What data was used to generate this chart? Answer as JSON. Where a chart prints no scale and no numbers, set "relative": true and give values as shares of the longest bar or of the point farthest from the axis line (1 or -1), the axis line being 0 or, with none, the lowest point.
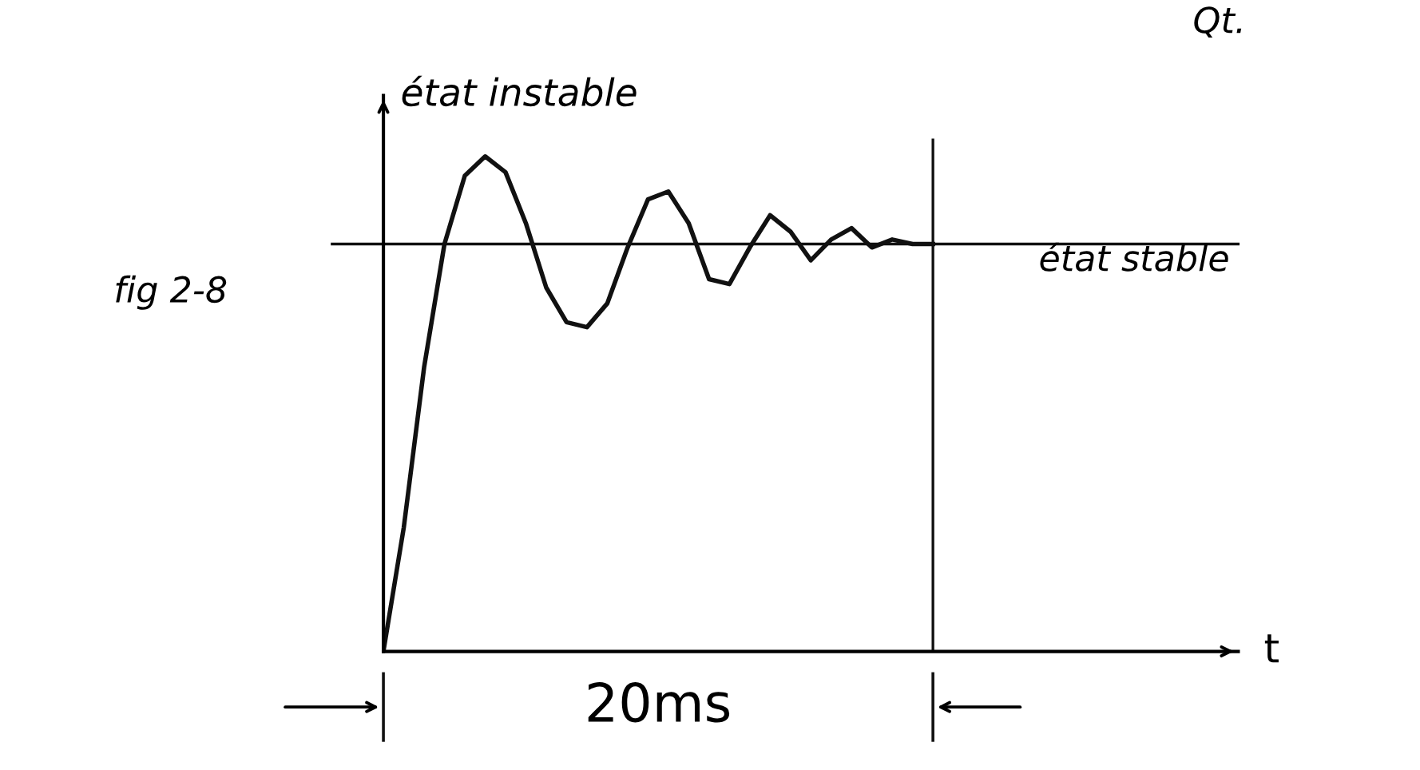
{
  "chart_data": {
    "type": "line",
    "relative": true,
    "xlabel": "t",
    "ylabel": "état instable",
    "legend": false,
    "marker": "none",
    "line_style": "solid",
    "categories": [
      null,
      null,
      null,
      null,
      null,
      null,
      null,
      null,
      null,
      null,
      null,
      null,
      null,
      null,
      null,
      null,
      null,
      null,
      null,
      null,
      null,
      null,
      null,
      null,
      null,
      null,
      null,
      null,
      null,
      null,
      null,
      null,
      null,
      null,
      null,
      null,
      null,
      null,
      null,
      null,
      null,
      null,
      null
    ],
    "series": [
      {
        "color": "#111111",
        "values": [
          0,
          0.25,
          0.574,
          0.823,
          0.961,
          1.0,
          0.968,
          0.865,
          0.735,
          0.665,
          0.655,
          0.703,
          0.816,
          0.913,
          0.929,
          0.865,
          0.752,
          0.742,
          0.816,
          0.881,
          0.848,
          0.79,
          0.832,
          0.855,
          0.816,
          0.832,
          0.823,
          0.823,
          null,
          null,
          null,
          null,
          null,
          null,
          null,
          null,
          null,
          null,
          null,
          null,
          null,
          null,
          null
        ]
      }
    ],
    "ref_lines": [
      {
        "axis": "y",
        "value": 0.823,
        "label": "état stable",
        "color": "#111111"
      },
      {
        "axis": "x",
        "label": "20ms",
        "color": "#111111"
      }
    ],
    "annotations": [
      "fig 2-8",
      "Qt."
    ]
  }
}
